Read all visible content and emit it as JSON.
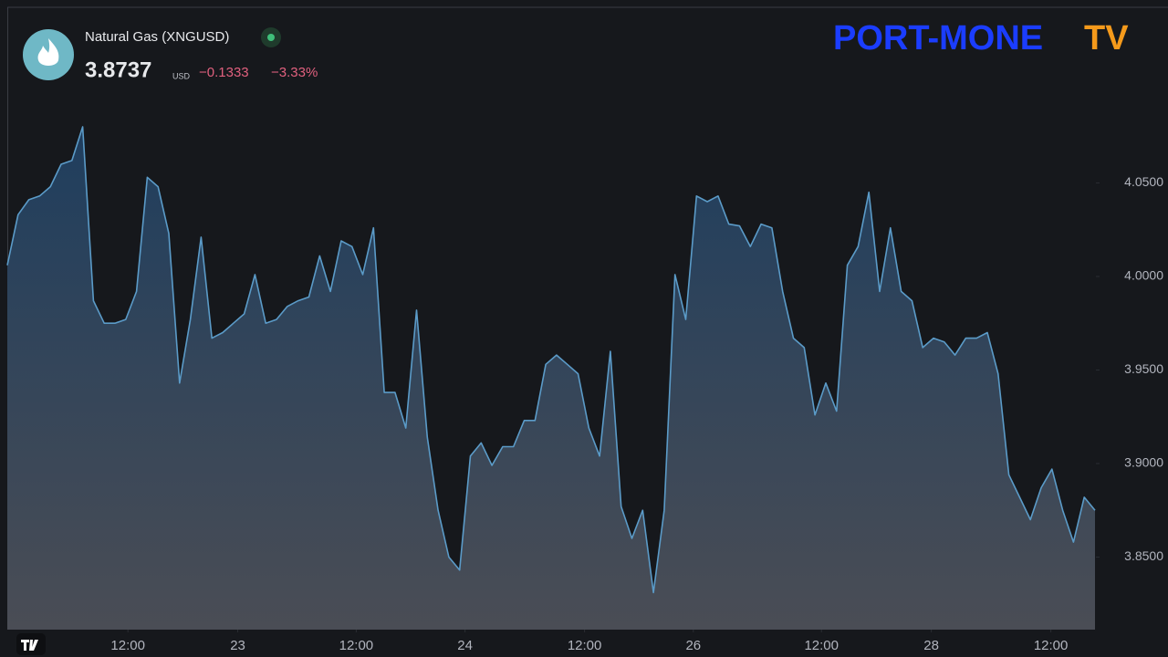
{
  "header": {
    "title": "Natural Gas (XNGUSD)",
    "price": "3.8737",
    "currency": "USD",
    "change": "−0.1333",
    "change_percent": "−3.33%"
  },
  "logo": {
    "brand": "PORT-MONE",
    "suffix": "TV"
  },
  "chart_data": {
    "type": "area",
    "values": [
      4.006,
      4.033,
      4.041,
      4.043,
      4.048,
      4.06,
      4.062,
      4.08,
      3.987,
      3.975,
      3.975,
      3.977,
      3.992,
      4.053,
      4.048,
      4.023,
      3.943,
      3.977,
      4.021,
      3.967,
      3.97,
      3.975,
      3.98,
      4.001,
      3.975,
      3.977,
      3.984,
      3.987,
      3.989,
      4.011,
      3.992,
      4.019,
      4.016,
      4.001,
      4.026,
      3.938,
      3.938,
      3.919,
      3.982,
      3.914,
      3.875,
      3.85,
      3.843,
      3.904,
      3.911,
      3.899,
      3.909,
      3.909,
      3.923,
      3.923,
      3.953,
      3.958,
      3.953,
      3.948,
      3.919,
      3.904,
      3.96,
      3.877,
      3.86,
      3.875,
      3.831,
      3.875,
      4.001,
      3.977,
      4.043,
      4.04,
      4.043,
      4.028,
      4.027,
      4.016,
      4.028,
      4.026,
      3.992,
      3.967,
      3.962,
      3.926,
      3.943,
      3.928,
      4.006,
      4.016,
      4.045,
      3.992,
      4.026,
      3.992,
      3.987,
      3.962,
      3.967,
      3.965,
      3.958,
      3.967,
      3.967,
      3.97,
      3.948,
      3.894,
      3.882,
      3.87,
      3.887,
      3.897,
      3.875,
      3.858,
      3.882,
      3.875
    ],
    "color": "#5b9bc8",
    "xlim": [
      0,
      101
    ],
    "xticks": [
      {
        "value": 11.2,
        "label": "12:00"
      },
      {
        "value": 21.4,
        "label": "23"
      },
      {
        "value": 32.4,
        "label": "12:00"
      },
      {
        "value": 42.5,
        "label": "24"
      },
      {
        "value": 53.6,
        "label": "12:00"
      },
      {
        "value": 63.7,
        "label": "26"
      },
      {
        "value": 75.6,
        "label": "12:00"
      },
      {
        "value": 85.8,
        "label": "28"
      },
      {
        "value": 96.9,
        "label": "12:00"
      }
    ],
    "ylim": [
      3.8112,
      4.1439
    ],
    "yticks": [
      {
        "value": 3.85,
        "label": "3.8500"
      },
      {
        "value": 3.9,
        "label": "3.9000"
      },
      {
        "value": 3.95,
        "label": "3.9500"
      },
      {
        "value": 4.0,
        "label": "4.0000"
      },
      {
        "value": 4.05,
        "label": "4.0500"
      }
    ]
  }
}
